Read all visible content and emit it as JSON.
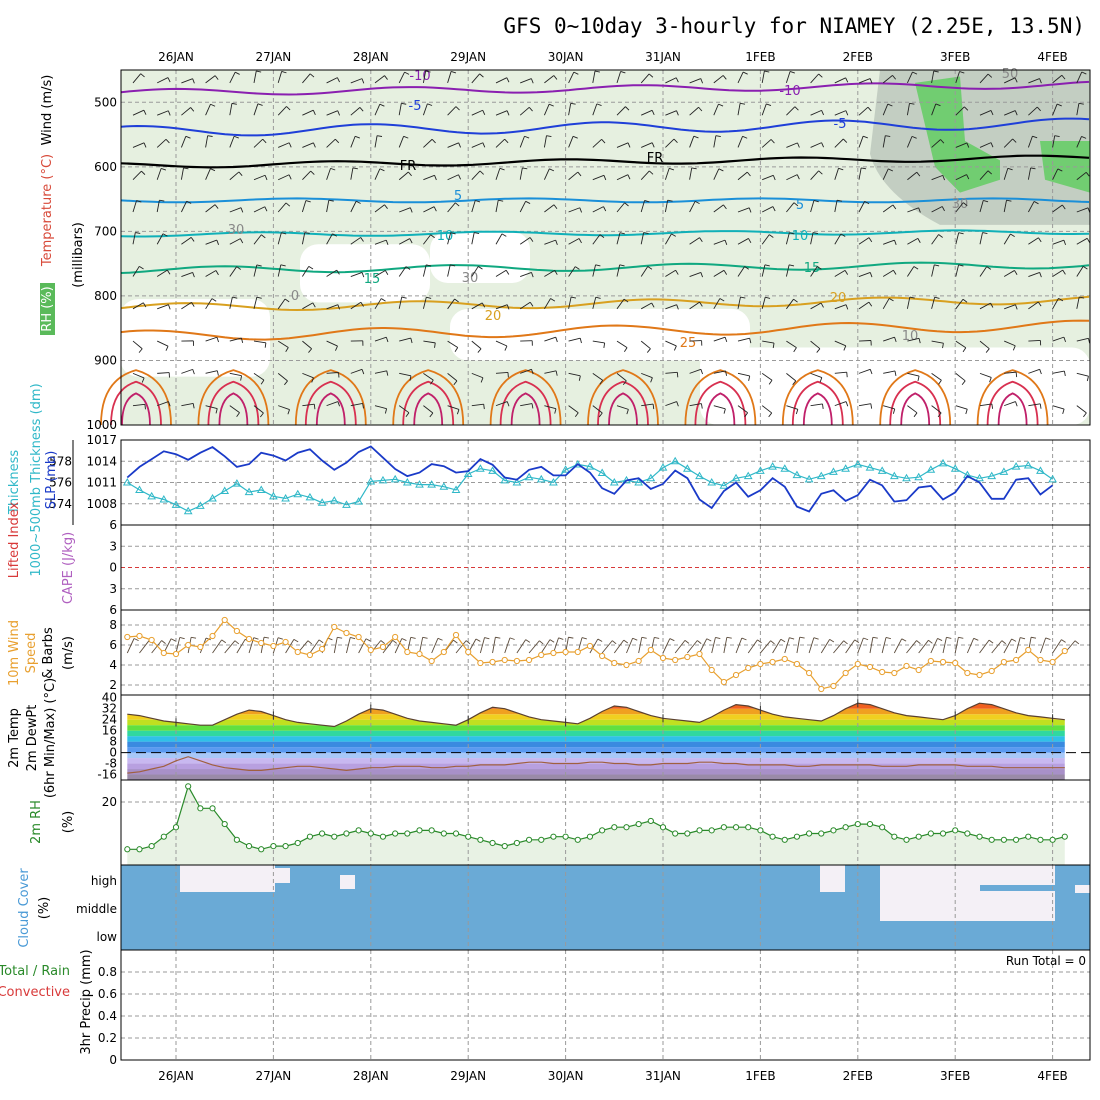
{
  "title": "GFS 0~10day 3-hourly for NIAMEY (2.25E, 13.5N)",
  "date_labels": [
    "26JAN",
    "27JAN",
    "28JAN",
    "29JAN",
    "30JAN",
    "31JAN",
    "1FEB",
    "2FEB",
    "3FEB",
    "4FEB"
  ],
  "colors": {
    "rh": "#e6f0e0",
    "rh_dark": "#bcc8bc",
    "rh_green": "#55cc55",
    "temp_neg10": "#8a1fb0",
    "temp_neg5": "#1f3fd8",
    "temp_fr": "#000000",
    "temp_5": "#1a8fd8",
    "temp_10": "#10b0b8",
    "temp_15": "#10a880",
    "temp_20": "#d8a020",
    "temp_25": "#e07818",
    "temp_warm": "#d83050",
    "thickness": "#30b8c8",
    "slp": "#1a3ac8",
    "lifted": "#d83a3a",
    "wind10": "#e8a030",
    "rh2m": "#2a8a2a",
    "cloud": "#6aaad6",
    "cloud_clear": "#f4f0f6"
  },
  "panels": {
    "upper": {
      "ylabels": [
        {
          "text": "RH (%)",
          "color": "#2a8a2a"
        },
        {
          "text": "Temperature (°C)",
          "color": "#d84a3a"
        },
        {
          "text": "Wind (m/s)",
          "color": "#000000"
        }
      ],
      "ylabel2": "(millibars)",
      "yticks": [
        "500",
        "600",
        "700",
        "800",
        "900",
        "1000"
      ],
      "contour_labels": [
        "-10",
        "-10",
        "-5",
        "-5",
        "FR",
        "FR",
        "5",
        "5",
        "10",
        "10",
        "15",
        "15",
        "20",
        "20",
        "25",
        "30",
        "30",
        "10",
        "50",
        "0",
        "30"
      ]
    },
    "thick": {
      "ylabel_left": "1000~500mb Thickness (dm)",
      "ylabel_right": "SLP (mb)",
      "yticks_left": [
        "578",
        "576",
        "574"
      ],
      "yticks_right": [
        "1017",
        "1014",
        "1011",
        "1008"
      ]
    },
    "cape": {
      "ylabel_left": "Lifted Index",
      "ylabel_right": "CAPE (J/kg)",
      "yticks": [
        "6",
        "3",
        "0",
        "3",
        "6"
      ]
    },
    "wind10": {
      "ylabel": [
        "10m Wind",
        "Speed",
        "& Barbs",
        "(m/s)"
      ],
      "yticks": [
        "8",
        "6",
        "4",
        "2"
      ]
    },
    "temp2m": {
      "ylabel": [
        "2m Temp",
        "2m DewPt",
        "(6hr Min/Max) (°C)"
      ],
      "yticks": [
        "40",
        "32",
        "24",
        "16",
        "8",
        "0",
        "-8",
        "-16"
      ]
    },
    "rh2m": {
      "ylabel": [
        "2m RH",
        "(%)"
      ],
      "yticks": [
        "20"
      ]
    },
    "cloud": {
      "ylabel": [
        "Cloud Cover",
        "(%)"
      ],
      "levels": [
        "high",
        "middle",
        "low"
      ]
    },
    "precip": {
      "ylabel": [
        "Total / Rain",
        "Convective",
        "3hr Precip (mm)"
      ],
      "yticks": [
        "0.8",
        "0.6",
        "0.4",
        "0.2",
        "0"
      ],
      "run_total": "Run Total = 0"
    }
  },
  "chart_data": [
    {
      "type": "line",
      "title": "",
      "x_unit": "3-hourly forecast steps from 25JAN 12Z",
      "series": [
        {
          "name": "1000~500mb Thickness (dm)",
          "values": [
            576.0,
            575.3,
            574.7,
            574.4,
            573.9,
            573.3,
            573.8,
            574.5,
            575.2,
            575.9,
            575.1,
            575.3,
            574.7,
            574.5,
            574.9,
            574.6,
            574.1,
            574.3,
            573.9,
            574.2,
            576.1,
            576.2,
            576.3,
            576.0,
            575.8,
            575.8,
            575.6,
            575.3,
            576.8,
            577.3,
            577.1,
            576.2,
            576.0,
            576.5,
            576.3,
            576.0,
            577.2,
            577.7,
            577.5,
            576.9,
            576.0,
            576.2,
            576.0,
            576.4,
            577.4,
            578.0,
            577.3,
            576.6,
            576.0,
            575.7,
            576.4,
            576.6,
            577.1,
            577.5,
            577.3,
            576.7,
            576.3,
            576.6,
            577.0,
            577.3,
            577.7,
            577.4,
            577.1,
            576.6,
            576.4,
            576.5,
            577.2,
            577.8,
            577.3,
            576.7,
            576.4,
            576.6,
            577.0,
            577.5,
            577.6,
            577.1,
            576.3
          ]
        },
        {
          "name": "SLP (mb)",
          "values": [
            1011.7,
            1013.2,
            1014.3,
            1015.4,
            1015.0,
            1014.2,
            1015.2,
            1016.0,
            1014.7,
            1013.2,
            1013.6,
            1015.2,
            1014.8,
            1014.1,
            1015.2,
            1015.7,
            1014.1,
            1012.8,
            1013.8,
            1015.3,
            1016.1,
            1014.5,
            1012.9,
            1011.9,
            1012.4,
            1013.6,
            1013.3,
            1012.4,
            1012.6,
            1014.3,
            1013.5,
            1011.7,
            1011.4,
            1012.8,
            1013.2,
            1012.0,
            1012.0,
            1013.6,
            1012.4,
            1010.2,
            1009.4,
            1011.3,
            1011.6,
            1010.1,
            1010.8,
            1012.7,
            1011.6,
            1008.6,
            1007.4,
            1009.8,
            1011.0,
            1009.0,
            1009.9,
            1011.6,
            1010.4,
            1007.6,
            1006.9,
            1009.4,
            1009.9,
            1008.4,
            1009.2,
            1011.4,
            1010.6,
            1008.3,
            1008.5,
            1010.3,
            1010.5,
            1008.6,
            1009.6,
            1011.9,
            1011.0,
            1008.7,
            1008.7,
            1011.4,
            1011.6,
            1009.3,
            1010.6
          ]
        },
        {
          "name": "Lifted Index",
          "values": [
            0
          ]
        },
        {
          "name": "10m Wind Speed (m/s)",
          "values": [
            6.8,
            6.9,
            6.5,
            5.2,
            5.1,
            6.0,
            5.8,
            6.9,
            8.5,
            7.4,
            6.6,
            6.2,
            5.9,
            6.3,
            5.3,
            5.0,
            5.6,
            7.8,
            7.2,
            6.8,
            5.5,
            5.8,
            6.8,
            5.3,
            5.1,
            4.4,
            5.3,
            7.0,
            5.3,
            4.2,
            4.3,
            4.5,
            4.4,
            4.5,
            5.0,
            5.2,
            5.3,
            5.3,
            5.9,
            4.9,
            4.2,
            4.0,
            4.4,
            5.5,
            4.7,
            4.5,
            4.8,
            5.1,
            3.5,
            2.3,
            3.0,
            3.7,
            4.1,
            4.3,
            4.6,
            4.1,
            3.2,
            1.6,
            1.9,
            3.2,
            4.1,
            3.8,
            3.3,
            3.2,
            3.9,
            3.5,
            4.4,
            4.3,
            4.2,
            3.2,
            3.0,
            3.4,
            4.3,
            4.5,
            5.5,
            4.5,
            4.3,
            5.4
          ]
        },
        {
          "name": "2m Temp (°C)",
          "values": [
            28,
            27,
            25,
            23,
            22,
            21,
            20,
            20,
            24,
            28,
            31,
            30,
            27,
            24,
            22,
            21,
            20,
            19,
            23,
            28,
            32,
            31,
            28,
            25,
            23,
            22,
            21,
            20,
            24,
            29,
            33,
            32,
            29,
            26,
            24,
            23,
            22,
            21,
            25,
            30,
            34,
            33,
            30,
            27,
            25,
            24,
            23,
            22,
            26,
            31,
            35,
            34,
            31,
            28,
            26,
            25,
            24,
            23,
            27,
            32,
            36,
            35,
            32,
            29,
            27,
            26,
            25,
            24,
            27,
            32,
            36,
            35,
            32,
            29,
            27,
            26,
            25,
            24
          ]
        },
        {
          "name": "2m DewPt (°C)",
          "values": [
            -15,
            -14,
            -12,
            -10,
            -6,
            -3,
            -6,
            -9,
            -11,
            -12,
            -13,
            -13,
            -12,
            -11,
            -10,
            -10,
            -11,
            -12,
            -13,
            -12,
            -11,
            -11,
            -10,
            -10,
            -10,
            -11,
            -11,
            -10,
            -10,
            -9,
            -9,
            -9,
            -8,
            -7,
            -7,
            -8,
            -8,
            -8,
            -7,
            -7,
            -8,
            -8,
            -9,
            -9,
            -8,
            -8,
            -8,
            -7,
            -7,
            -8,
            -8,
            -9,
            -9,
            -9,
            -9,
            -10,
            -10,
            -9,
            -9,
            -9,
            -9,
            -9,
            -10,
            -10,
            -10,
            -9,
            -9,
            -9,
            -9,
            -10,
            -10,
            -10,
            -11,
            -11,
            -11,
            -11,
            -11,
            -11
          ]
        },
        {
          "name": "2m RH (%)",
          "values": [
            5,
            5,
            6,
            9,
            12,
            25,
            18,
            18,
            13,
            8,
            6,
            5,
            6,
            6,
            7,
            9,
            10,
            9,
            10,
            11,
            10,
            9,
            10,
            10,
            11,
            11,
            10,
            10,
            9,
            8,
            7,
            6,
            7,
            8,
            8,
            9,
            9,
            8,
            9,
            11,
            12,
            12,
            13,
            14,
            12,
            10,
            10,
            11,
            11,
            12,
            12,
            12,
            11,
            9,
            8,
            9,
            10,
            10,
            11,
            12,
            13,
            13,
            12,
            9,
            8,
            9,
            10,
            10,
            11,
            10,
            9,
            8,
            8,
            8,
            9,
            8,
            8,
            9
          ]
        },
        {
          "name": "3hr Precip (mm)",
          "values": [
            0
          ]
        }
      ]
    }
  ]
}
